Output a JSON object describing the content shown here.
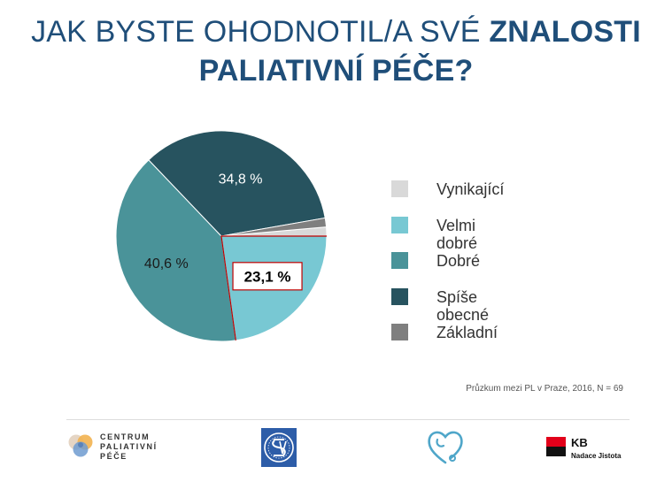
{
  "title": {
    "line1_regular": "JAK BYSTE OHODNOTIL/A SVÉ ",
    "line1_bold": "ZNALOSTI",
    "line2_bold": "PALIATIVNÍ PÉČE?"
  },
  "chart_data": {
    "type": "pie",
    "categories": [
      "Vynikající",
      "Velmi dobré",
      "Dobré",
      "Spíše obecné",
      "Základní"
    ],
    "values": [
      1.4,
      23.1,
      40.6,
      34.8,
      1.4
    ],
    "data_labels": [
      "",
      "23,1 %",
      "40,6 %",
      "34,8 %",
      ""
    ],
    "colors": [
      "#d9d9d9",
      "#78c8d3",
      "#4a9399",
      "#27535f",
      "#7f7f7f"
    ],
    "legend_position": "right",
    "highlighted_slice": "Velmi dobré",
    "highlight_color": "#c00000"
  },
  "source": "Průzkum mezi PL v Praze, 2016, N = 69",
  "logos": {
    "cpp": [
      "CENTRUM",
      "PALIATIVNÍ",
      "PÉČE"
    ],
    "kb": {
      "name": "KB",
      "subtitle": "Nadace Jistota"
    }
  }
}
